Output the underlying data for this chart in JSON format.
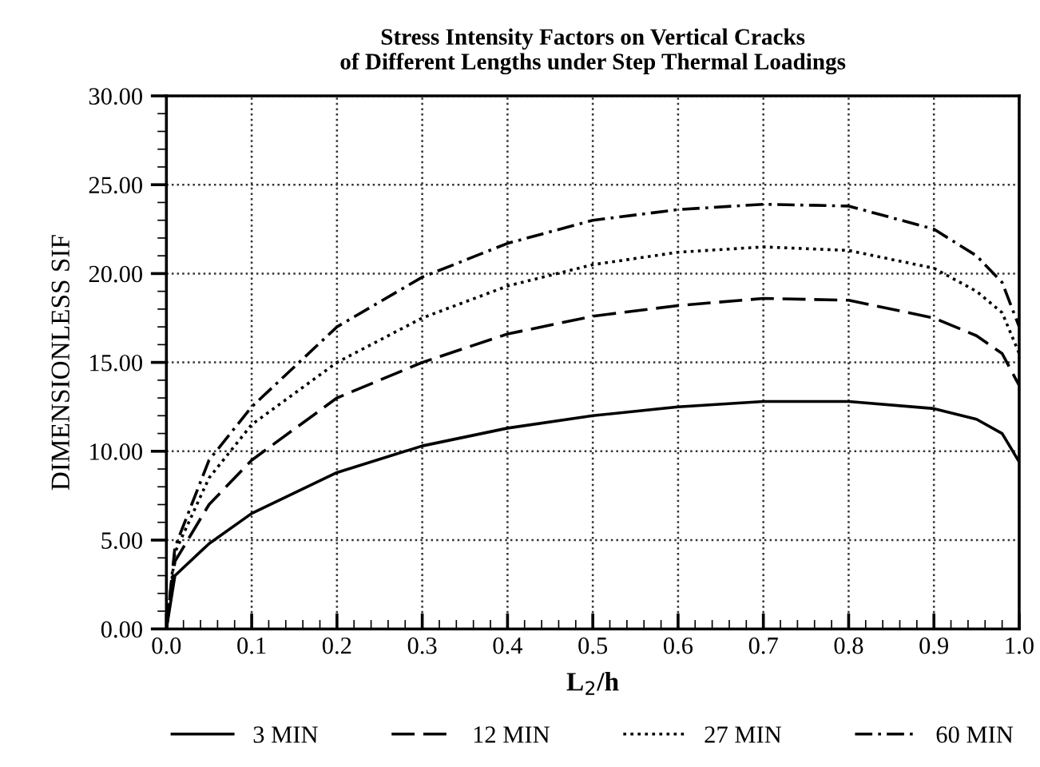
{
  "chart_data": {
    "type": "line",
    "title": "Stress Intensity Factors on Vertical Cracks\nof Different Lengths under Step Thermal Loadings",
    "xlabel": "L$_{2}$/h",
    "ylabel": "DIMENSIONLESS SIF",
    "xlim": [
      0,
      1
    ],
    "ylim": [
      0,
      30
    ],
    "xticks": [
      {
        "value": 0,
        "label": "0.0"
      },
      {
        "value": 0.1,
        "label": "0.1"
      },
      {
        "value": 0.2,
        "label": "0.2"
      },
      {
        "value": 0.3,
        "label": "0.3"
      },
      {
        "value": 0.4,
        "label": "0.4"
      },
      {
        "value": 0.5,
        "label": "0.5"
      },
      {
        "value": 0.6,
        "label": "0.6"
      },
      {
        "value": 0.7,
        "label": "0.7"
      },
      {
        "value": 0.8,
        "label": "0.8"
      },
      {
        "value": 0.9,
        "label": "0.9"
      },
      {
        "value": 1,
        "label": "1.0"
      }
    ],
    "yticks": [
      {
        "value": 0,
        "label": "0.00"
      },
      {
        "value": 5,
        "label": "5.00"
      },
      {
        "value": 10,
        "label": "10.00"
      },
      {
        "value": 15,
        "label": "15.00"
      },
      {
        "value": 20,
        "label": "20.00"
      },
      {
        "value": 25,
        "label": "25.00"
      },
      {
        "value": 30,
        "label": "30.00"
      }
    ],
    "grid": true,
    "legend": "bottom",
    "marker": "none",
    "x": [
      0,
      0.01,
      0.05,
      0.1,
      0.2,
      0.3,
      0.4,
      0.5,
      0.6,
      0.7,
      0.8,
      0.9,
      0.95,
      0.98,
      1.0
    ],
    "series": [
      {
        "name": "3 MIN",
        "color": "#000000",
        "line_style": "solid",
        "values": [
          0,
          3.0,
          4.8,
          6.5,
          8.8,
          10.3,
          11.3,
          12.0,
          12.5,
          12.8,
          12.8,
          12.4,
          11.8,
          11.0,
          9.4
        ]
      },
      {
        "name": "12 MIN",
        "color": "#000000",
        "line_style": "dashed",
        "values": [
          0,
          3.8,
          7.0,
          9.5,
          13.0,
          15.0,
          16.6,
          17.6,
          18.2,
          18.6,
          18.5,
          17.5,
          16.5,
          15.5,
          13.7
        ]
      },
      {
        "name": "27 MIN",
        "color": "#000000",
        "line_style": "dotted",
        "values": [
          0,
          4.3,
          8.5,
          11.5,
          15.0,
          17.5,
          19.3,
          20.5,
          21.2,
          21.5,
          21.3,
          20.3,
          19.0,
          17.8,
          15.5
        ]
      },
      {
        "name": "60 MIN",
        "color": "#000000",
        "line_style": "dashdot",
        "values": [
          0,
          4.6,
          9.5,
          12.5,
          17.0,
          19.8,
          21.7,
          23.0,
          23.6,
          23.9,
          23.8,
          22.5,
          21.0,
          19.5,
          17.0
        ]
      }
    ]
  }
}
